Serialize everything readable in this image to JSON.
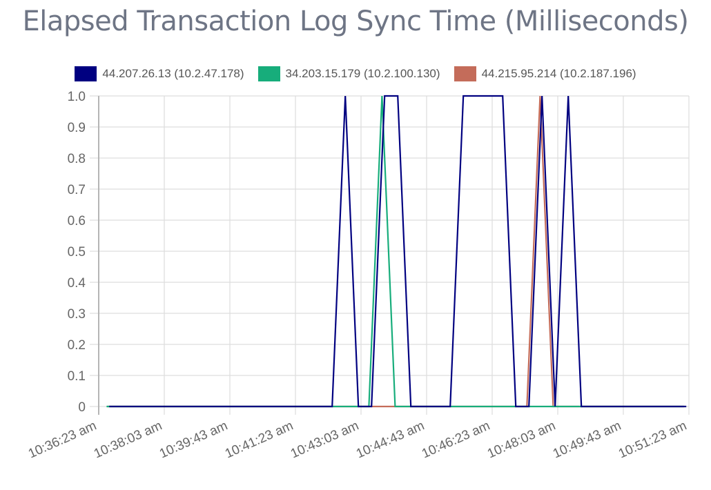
{
  "chart_data": {
    "type": "line",
    "title": "Elapsed Transaction Log Sync Time (Milliseconds)",
    "xlabel": "",
    "ylabel": "",
    "ylim": [
      0,
      1.0
    ],
    "y_ticks": [
      "1.0",
      "0.9",
      "0.8",
      "0.7",
      "0.6",
      "0.5",
      "0.4",
      "0.3",
      "0.2",
      "0.1",
      "0"
    ],
    "x_ticks": [
      "10:36:23 am",
      "10:38:03 am",
      "10:39:43 am",
      "10:41:23 am",
      "10:43:03 am",
      "10:44:43 am",
      "10:46:23 am",
      "10:48:03 am",
      "10:49:43 am",
      "10:51:23 am"
    ],
    "x_range_seconds": [
      0,
      900
    ],
    "x_origin": "10:36:23 am",
    "sample_interval_seconds": 20,
    "grid": true,
    "legend_position": "top",
    "series": [
      {
        "name": "44.207.26.13 (10.2.47.178)",
        "color": "#000080",
        "start_offset_seconds": 16,
        "values": [
          0,
          0,
          0,
          0,
          0,
          0,
          0,
          0,
          0,
          0,
          0,
          0,
          0,
          0,
          0,
          0,
          0,
          0,
          1,
          0,
          0,
          1,
          1,
          0,
          0,
          0,
          0,
          1,
          1,
          1,
          1,
          0,
          0,
          1,
          0,
          1,
          0,
          0,
          0,
          0,
          0,
          0,
          0,
          0,
          0
        ]
      },
      {
        "name": "34.203.15.179 (10.2.100.130)",
        "color": "#17ad7b",
        "start_offset_seconds": 12,
        "values": [
          0,
          0,
          0,
          0,
          0,
          0,
          0,
          0,
          0,
          0,
          0,
          0,
          0,
          0,
          0,
          0,
          0,
          0,
          0,
          0,
          0,
          1,
          0,
          0,
          0,
          0,
          0,
          0,
          0,
          0,
          0,
          0,
          0,
          0,
          0,
          0,
          0,
          0,
          0,
          0,
          0,
          0,
          0,
          0,
          0
        ]
      },
      {
        "name": "44.215.95.214 (10.2.187.196)",
        "color": "#c46c5a",
        "start_offset_seconds": 13,
        "values": [
          0,
          0,
          0,
          0,
          0,
          0,
          0,
          0,
          0,
          0,
          0,
          0,
          0,
          0,
          0,
          0,
          0,
          0,
          0,
          0,
          0,
          0,
          0,
          0,
          0,
          0,
          0,
          0,
          0,
          0,
          0,
          0,
          0,
          1,
          0,
          0,
          0,
          0,
          0,
          0,
          0,
          0,
          0,
          0,
          0
        ]
      }
    ]
  }
}
